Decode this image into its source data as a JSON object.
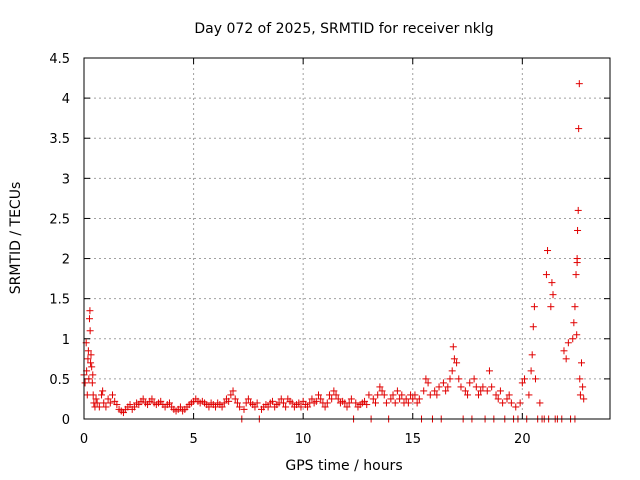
{
  "chart_data": {
    "type": "scatter",
    "title": "Day 072 of 2025, SRMTID for receiver nklg",
    "xlabel": "GPS time / hours",
    "ylabel": "SRMTID / TECUs",
    "xlim": [
      0,
      24
    ],
    "ylim": [
      0,
      4.5
    ],
    "grid": true,
    "marker": "+",
    "color": "#e00000",
    "x_ticks": [
      {
        "value": 0,
        "label": "0"
      },
      {
        "value": 5,
        "label": "5"
      },
      {
        "value": 10,
        "label": "10"
      },
      {
        "value": 15,
        "label": "15"
      },
      {
        "value": 20,
        "label": "20"
      }
    ],
    "y_ticks": [
      {
        "value": 0,
        "label": "0"
      },
      {
        "value": 0.5,
        "label": "0.5"
      },
      {
        "value": 1,
        "label": "1"
      },
      {
        "value": 1.5,
        "label": "1.5"
      },
      {
        "value": 2,
        "label": "2"
      },
      {
        "value": 2.5,
        "label": "2.5"
      },
      {
        "value": 3,
        "label": "3"
      },
      {
        "value": 3.5,
        "label": "3.5"
      },
      {
        "value": 4,
        "label": "4"
      },
      {
        "value": 4.5,
        "label": "4.5"
      }
    ],
    "series": [
      {
        "name": "SRMTID",
        "points": [
          [
            0.0,
            0.55
          ],
          [
            0.05,
            0.45
          ],
          [
            0.1,
            0.95
          ],
          [
            0.12,
            0.6
          ],
          [
            0.15,
            0.3
          ],
          [
            0.18,
            0.75
          ],
          [
            0.2,
            0.85
          ],
          [
            0.22,
            0.5
          ],
          [
            0.25,
            1.25
          ],
          [
            0.27,
            1.35
          ],
          [
            0.28,
            1.1
          ],
          [
            0.3,
            0.7
          ],
          [
            0.32,
            0.8
          ],
          [
            0.35,
            0.65
          ],
          [
            0.38,
            0.45
          ],
          [
            0.4,
            0.55
          ],
          [
            0.42,
            0.3
          ],
          [
            0.45,
            0.2
          ],
          [
            0.5,
            0.15
          ],
          [
            0.55,
            0.25
          ],
          [
            0.6,
            0.2
          ],
          [
            0.7,
            0.15
          ],
          [
            0.8,
            0.3
          ],
          [
            0.85,
            0.35
          ],
          [
            0.9,
            0.2
          ],
          [
            1.0,
            0.15
          ],
          [
            1.1,
            0.25
          ],
          [
            1.2,
            0.2
          ],
          [
            1.3,
            0.3
          ],
          [
            1.4,
            0.22
          ],
          [
            1.5,
            0.18
          ],
          [
            1.6,
            0.12
          ],
          [
            1.7,
            0.1
          ],
          [
            1.8,
            0.08
          ],
          [
            1.9,
            0.12
          ],
          [
            2.0,
            0.15
          ],
          [
            2.1,
            0.18
          ],
          [
            2.2,
            0.12
          ],
          [
            2.3,
            0.15
          ],
          [
            2.4,
            0.2
          ],
          [
            2.5,
            0.18
          ],
          [
            2.6,
            0.22
          ],
          [
            2.7,
            0.25
          ],
          [
            2.8,
            0.2
          ],
          [
            2.9,
            0.18
          ],
          [
            3.0,
            0.22
          ],
          [
            3.1,
            0.25
          ],
          [
            3.2,
            0.2
          ],
          [
            3.3,
            0.18
          ],
          [
            3.4,
            0.2
          ],
          [
            3.5,
            0.22
          ],
          [
            3.6,
            0.18
          ],
          [
            3.7,
            0.15
          ],
          [
            3.8,
            0.18
          ],
          [
            3.9,
            0.2
          ],
          [
            4.0,
            0.15
          ],
          [
            4.1,
            0.12
          ],
          [
            4.2,
            0.1
          ],
          [
            4.3,
            0.12
          ],
          [
            4.4,
            0.15
          ],
          [
            4.5,
            0.1
          ],
          [
            4.6,
            0.12
          ],
          [
            4.7,
            0.15
          ],
          [
            4.8,
            0.18
          ],
          [
            4.9,
            0.2
          ],
          [
            5.0,
            0.22
          ],
          [
            5.1,
            0.25
          ],
          [
            5.2,
            0.22
          ],
          [
            5.3,
            0.2
          ],
          [
            5.4,
            0.22
          ],
          [
            5.5,
            0.2
          ],
          [
            5.6,
            0.18
          ],
          [
            5.7,
            0.15
          ],
          [
            5.8,
            0.2
          ],
          [
            5.9,
            0.18
          ],
          [
            6.0,
            0.15
          ],
          [
            6.1,
            0.2
          ],
          [
            6.2,
            0.18
          ],
          [
            6.3,
            0.15
          ],
          [
            6.4,
            0.2
          ],
          [
            6.5,
            0.25
          ],
          [
            6.6,
            0.22
          ],
          [
            6.7,
            0.3
          ],
          [
            6.8,
            0.35
          ],
          [
            6.9,
            0.25
          ],
          [
            7.0,
            0.2
          ],
          [
            7.1,
            0.15
          ],
          [
            7.2,
            0.0
          ],
          [
            7.3,
            0.12
          ],
          [
            7.4,
            0.2
          ],
          [
            7.5,
            0.25
          ],
          [
            7.6,
            0.2
          ],
          [
            7.7,
            0.18
          ],
          [
            7.8,
            0.15
          ],
          [
            7.9,
            0.2
          ],
          [
            8.0,
            0.0
          ],
          [
            8.1,
            0.12
          ],
          [
            8.2,
            0.15
          ],
          [
            8.3,
            0.18
          ],
          [
            8.4,
            0.15
          ],
          [
            8.5,
            0.2
          ],
          [
            8.6,
            0.22
          ],
          [
            8.7,
            0.15
          ],
          [
            8.8,
            0.18
          ],
          [
            8.9,
            0.2
          ],
          [
            9.0,
            0.25
          ],
          [
            9.1,
            0.2
          ],
          [
            9.2,
            0.15
          ],
          [
            9.3,
            0.25
          ],
          [
            9.4,
            0.22
          ],
          [
            9.5,
            0.2
          ],
          [
            9.6,
            0.15
          ],
          [
            9.7,
            0.18
          ],
          [
            9.8,
            0.2
          ],
          [
            9.9,
            0.15
          ],
          [
            10.0,
            0.22
          ],
          [
            10.1,
            0.18
          ],
          [
            10.2,
            0.15
          ],
          [
            10.3,
            0.2
          ],
          [
            10.4,
            0.25
          ],
          [
            10.5,
            0.2
          ],
          [
            10.6,
            0.22
          ],
          [
            10.7,
            0.3
          ],
          [
            10.8,
            0.25
          ],
          [
            10.9,
            0.2
          ],
          [
            11.0,
            0.15
          ],
          [
            11.1,
            0.2
          ],
          [
            11.2,
            0.3
          ],
          [
            11.3,
            0.25
          ],
          [
            11.4,
            0.35
          ],
          [
            11.5,
            0.3
          ],
          [
            11.6,
            0.25
          ],
          [
            11.7,
            0.2
          ],
          [
            11.8,
            0.22
          ],
          [
            11.9,
            0.2
          ],
          [
            12.0,
            0.15
          ],
          [
            12.1,
            0.2
          ],
          [
            12.2,
            0.25
          ],
          [
            12.3,
            0.0
          ],
          [
            12.4,
            0.2
          ],
          [
            12.5,
            0.15
          ],
          [
            12.6,
            0.18
          ],
          [
            12.7,
            0.2
          ],
          [
            12.8,
            0.22
          ],
          [
            12.9,
            0.18
          ],
          [
            13.0,
            0.3
          ],
          [
            13.1,
            0.0
          ],
          [
            13.2,
            0.25
          ],
          [
            13.3,
            0.2
          ],
          [
            13.4,
            0.3
          ],
          [
            13.5,
            0.4
          ],
          [
            13.6,
            0.35
          ],
          [
            13.7,
            0.3
          ],
          [
            13.8,
            0.2
          ],
          [
            13.9,
            0.0
          ],
          [
            14.0,
            0.25
          ],
          [
            14.1,
            0.3
          ],
          [
            14.2,
            0.2
          ],
          [
            14.3,
            0.35
          ],
          [
            14.4,
            0.25
          ],
          [
            14.5,
            0.3
          ],
          [
            14.6,
            0.2
          ],
          [
            14.7,
            0.25
          ],
          [
            14.8,
            0.2
          ],
          [
            14.9,
            0.3
          ],
          [
            15.0,
            0.25
          ],
          [
            15.1,
            0.3
          ],
          [
            15.2,
            0.2
          ],
          [
            15.3,
            0.25
          ],
          [
            15.4,
            0.0
          ],
          [
            15.5,
            0.35
          ],
          [
            15.6,
            0.5
          ],
          [
            15.7,
            0.45
          ],
          [
            15.8,
            0.3
          ],
          [
            15.9,
            0.0
          ],
          [
            16.0,
            0.35
          ],
          [
            16.1,
            0.3
          ],
          [
            16.2,
            0.4
          ],
          [
            16.3,
            0.0
          ],
          [
            16.4,
            0.45
          ],
          [
            16.5,
            0.35
          ],
          [
            16.6,
            0.4
          ],
          [
            16.7,
            0.5
          ],
          [
            16.8,
            0.6
          ],
          [
            16.85,
            0.9
          ],
          [
            16.9,
            0.75
          ],
          [
            17.0,
            0.7
          ],
          [
            17.1,
            0.5
          ],
          [
            17.2,
            0.4
          ],
          [
            17.3,
            0.0
          ],
          [
            17.4,
            0.35
          ],
          [
            17.5,
            0.3
          ],
          [
            17.6,
            0.45
          ],
          [
            17.7,
            0.0
          ],
          [
            17.8,
            0.5
          ],
          [
            17.9,
            0.4
          ],
          [
            18.0,
            0.3
          ],
          [
            18.1,
            0.35
          ],
          [
            18.2,
            0.4
          ],
          [
            18.3,
            0.0
          ],
          [
            18.4,
            0.35
          ],
          [
            18.5,
            0.6
          ],
          [
            18.6,
            0.4
          ],
          [
            18.7,
            0.0
          ],
          [
            18.8,
            0.3
          ],
          [
            18.9,
            0.25
          ],
          [
            19.0,
            0.35
          ],
          [
            19.1,
            0.2
          ],
          [
            19.2,
            0.0
          ],
          [
            19.3,
            0.25
          ],
          [
            19.4,
            0.3
          ],
          [
            19.5,
            0.2
          ],
          [
            19.6,
            0.0
          ],
          [
            19.7,
            0.15
          ],
          [
            19.8,
            0.0
          ],
          [
            19.9,
            0.2
          ],
          [
            20.0,
            0.45
          ],
          [
            20.1,
            0.5
          ],
          [
            20.2,
            0.0
          ],
          [
            20.3,
            0.3
          ],
          [
            20.4,
            0.6
          ],
          [
            20.45,
            0.8
          ],
          [
            20.5,
            1.15
          ],
          [
            20.55,
            1.4
          ],
          [
            20.6,
            0.5
          ],
          [
            20.7,
            0.0
          ],
          [
            20.8,
            0.2
          ],
          [
            20.9,
            0.0
          ],
          [
            21.0,
            0.0
          ],
          [
            21.1,
            1.8
          ],
          [
            21.15,
            2.1
          ],
          [
            21.2,
            0.0
          ],
          [
            21.3,
            1.4
          ],
          [
            21.35,
            1.7
          ],
          [
            21.4,
            1.55
          ],
          [
            21.5,
            0.0
          ],
          [
            21.6,
            0.0
          ],
          [
            21.8,
            0.0
          ],
          [
            21.9,
            0.85
          ],
          [
            22.0,
            0.75
          ],
          [
            22.1,
            0.95
          ],
          [
            22.2,
            0.0
          ],
          [
            22.3,
            1.0
          ],
          [
            22.35,
            1.2
          ],
          [
            22.4,
            1.4
          ],
          [
            22.45,
            1.8
          ],
          [
            22.5,
            2.0
          ],
          [
            22.52,
            2.35
          ],
          [
            22.55,
            2.6
          ],
          [
            22.57,
            3.62
          ],
          [
            22.6,
            4.18
          ],
          [
            22.62,
            0.5
          ],
          [
            22.65,
            0.3
          ],
          [
            22.7,
            0.7
          ],
          [
            22.75,
            0.4
          ],
          [
            22.8,
            0.25
          ],
          [
            22.5,
            1.95
          ],
          [
            22.48,
            1.05
          ],
          [
            22.4,
            0.0
          ]
        ]
      }
    ]
  }
}
